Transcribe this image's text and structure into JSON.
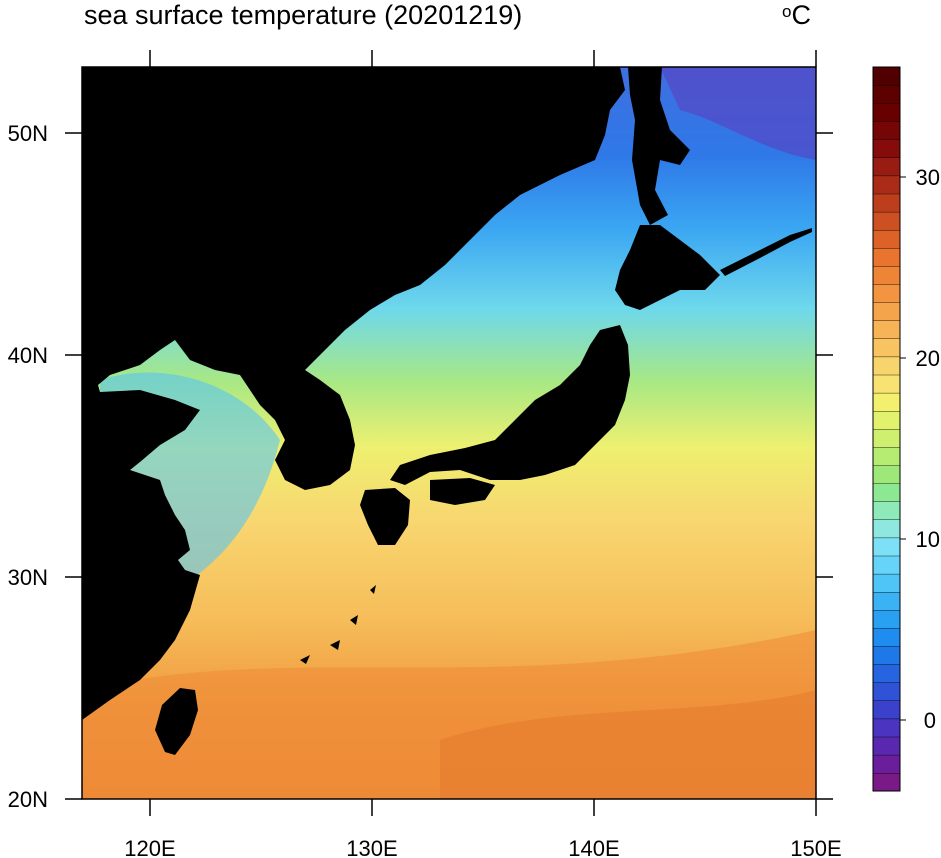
{
  "title": "sea surface temperature (20201219)",
  "unit": "C",
  "unit_degree": "o",
  "axes": {
    "lon_ticks": [
      "120E",
      "130E",
      "140E",
      "150E"
    ],
    "lat_ticks": [
      "50N",
      "40N",
      "30N",
      "20N"
    ],
    "lon_range": [
      117,
      150
    ],
    "lat_range": [
      20,
      53
    ]
  },
  "colorbar": {
    "range": [
      -4,
      36
    ],
    "step": 1,
    "tick_labels": [
      "30",
      "20",
      "10",
      "0"
    ],
    "colors": [
      "#7a1a86",
      "#6a1e9c",
      "#5a28b0",
      "#4a34c0",
      "#3a42cc",
      "#2f52d6",
      "#2664e0",
      "#1f78e8",
      "#1f8cef",
      "#2aa0f2",
      "#3bb2f4",
      "#4fc4f6",
      "#66d4f8",
      "#7ee0f6",
      "#8ee8e0",
      "#8eeab8",
      "#8ce892",
      "#9ee87a",
      "#b6ec72",
      "#cef06e",
      "#e2f26c",
      "#f2f06c",
      "#f8e272",
      "#f8d46c",
      "#f8c462",
      "#f6b456",
      "#f4a44a",
      "#f29440",
      "#ee8436",
      "#e8742e",
      "#dc6228",
      "#cc5022",
      "#bc3e1c",
      "#aa2c16",
      "#981c12",
      "#860c0c",
      "#760606",
      "#680000",
      "#5c0000",
      "#500000"
    ]
  }
}
